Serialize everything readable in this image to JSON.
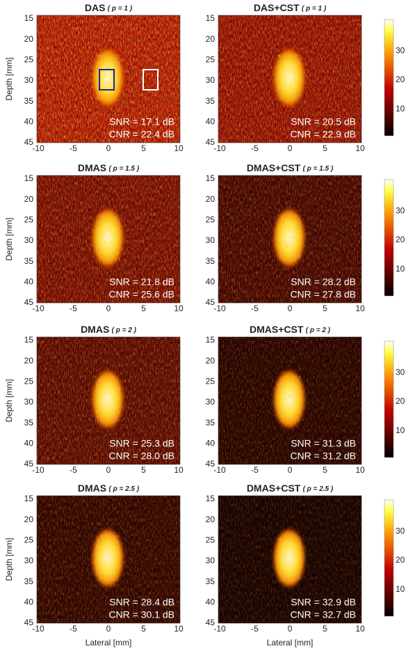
{
  "panels": [
    {
      "title": "DAS",
      "param": "( p = 1 )",
      "snr": "SNR = 17.1 dB",
      "cnr": "CNR = 22.4 dB"
    },
    {
      "title": "DAS+CST",
      "param": "( p = 1 )",
      "snr": "SNR = 20.5 dB",
      "cnr": "CNR = 22.9 dB"
    },
    {
      "title": "DMAS",
      "param": "( p = 1.5 )",
      "snr": "SNR = 21.8 dB",
      "cnr": "CNR = 25.6 dB"
    },
    {
      "title": "DMAS+CST",
      "param": "( p = 1.5 )",
      "snr": "SNR = 28.2 dB",
      "cnr": "CNR = 27.8 dB"
    },
    {
      "title": "DMAS",
      "param": "( p = 2 )",
      "snr": "SNR = 25.3 dB",
      "cnr": "CNR = 28.0 dB"
    },
    {
      "title": "DMAS+CST",
      "param": "( p = 2 )",
      "snr": "SNR = 31.3 dB",
      "cnr": "CNR = 31.2 dB"
    },
    {
      "title": "DMAS",
      "param": "( p = 2.5 )",
      "snr": "SNR = 28.4 dB",
      "cnr": "CNR = 30.1 dB"
    },
    {
      "title": "DMAS+CST",
      "param": "( p = 2.5 )",
      "snr": "SNR = 32.9 dB",
      "cnr": "CNR = 32.7 dB"
    }
  ],
  "y_axis_label": "Depth [mm]",
  "x_axis_label": "Lateral [mm]",
  "y_ticks": [
    "15",
    "20",
    "25",
    "30",
    "35",
    "40",
    "45"
  ],
  "x_ticks": [
    "-10",
    "-5",
    "0",
    "5",
    "10"
  ],
  "colorbar_ticks": [
    "30",
    "20",
    "10"
  ]
}
